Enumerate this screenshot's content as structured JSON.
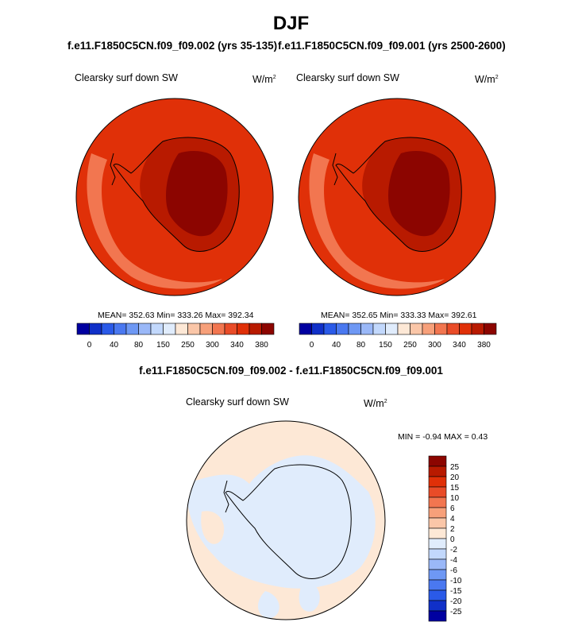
{
  "figure": {
    "title": "DJF",
    "diff_title": "f.e11.F1850C5CN.f09_f09.002 - f.e11.F1850C5CN.f09_f09.001"
  },
  "panels": [
    {
      "case_title": "f.e11.F1850C5CN.f09_f09.002 (yrs 35-135)",
      "variable": "Clearsky surf down SW",
      "units": "W/m",
      "units_sup": "2",
      "stats": "MEAN= 352.63  Min= 333.26  Max= 392.34"
    },
    {
      "case_title": "f.e11.F1850C5CN.f09_f09.001 (yrs 2500-2600)",
      "variable": "Clearsky surf down SW",
      "units": "W/m",
      "units_sup": "2",
      "stats": "MEAN= 352.65  Min= 333.33  Max= 392.61"
    }
  ],
  "diff_panel": {
    "variable": "Clearsky surf down SW",
    "units": "W/m",
    "units_sup": "2",
    "minmax": "MIN =  -0.94 MAX =   0.43"
  },
  "colorbar_abs": {
    "colors": [
      "#0000a0",
      "#1030c8",
      "#2a5ae8",
      "#4a78f0",
      "#6e98f4",
      "#9ab8f8",
      "#c2d8fc",
      "#e0ecfc",
      "#fde8d6",
      "#fac6a8",
      "#f7a07a",
      "#f27650",
      "#e94c28",
      "#e03008",
      "#b81a00",
      "#8c0500"
    ],
    "tick_labels": [
      "0",
      "40",
      "80",
      "150",
      "250",
      "300",
      "340",
      "380"
    ]
  },
  "colorbar_diff": {
    "colors": [
      "#8c0500",
      "#b81a00",
      "#e03008",
      "#e94c28",
      "#f27650",
      "#f7a07a",
      "#fac6a8",
      "#fde8d6",
      "#e0ecfc",
      "#c2d8fc",
      "#9ab8f8",
      "#6e98f4",
      "#4a78f0",
      "#2a5ae8",
      "#1030c8",
      "#0000a0"
    ],
    "tick_labels": [
      "25",
      "20",
      "15",
      "10",
      "6",
      "4",
      "2",
      "0",
      "-2",
      "-4",
      "-6",
      "-10",
      "-15",
      "-20",
      "-25"
    ]
  },
  "chart_data": [
    {
      "type": "heatmap",
      "title": "Clearsky surf down SW",
      "units": "W/m2",
      "projection": "south polar stereographic",
      "mean": 352.63,
      "min": 333.26,
      "max": 392.34,
      "levels": [
        0,
        20,
        40,
        60,
        80,
        100,
        150,
        200,
        250,
        275,
        300,
        320,
        340,
        360,
        380
      ]
    },
    {
      "type": "heatmap",
      "title": "Clearsky surf down SW",
      "units": "W/m2",
      "projection": "south polar stereographic",
      "mean": 352.65,
      "min": 333.33,
      "max": 392.61,
      "levels": [
        0,
        20,
        40,
        60,
        80,
        100,
        150,
        200,
        250,
        275,
        300,
        320,
        340,
        360,
        380
      ]
    },
    {
      "type": "heatmap",
      "title": "Clearsky surf down SW",
      "units": "W/m2",
      "projection": "south polar stereographic",
      "min": -0.94,
      "max": 0.43,
      "levels": [
        -25,
        -20,
        -15,
        -10,
        -6,
        -4,
        -2,
        0,
        2,
        4,
        6,
        10,
        15,
        20,
        25
      ]
    }
  ]
}
